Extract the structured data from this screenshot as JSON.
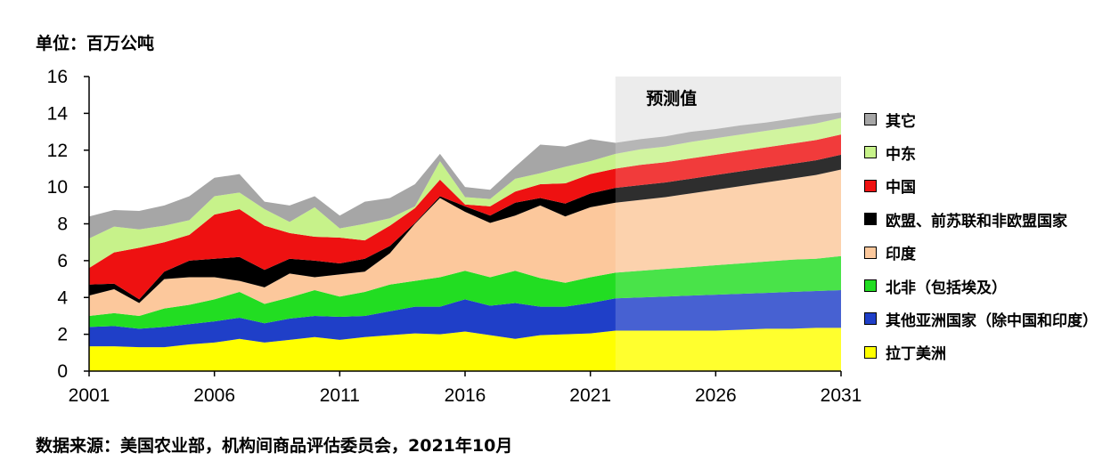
{
  "unit_label": "单位：百万公吨",
  "source_note": "数据来源：美国农业部，机构间商品评估委员会，2021年10月",
  "chart_data": {
    "type": "area",
    "stacked": true,
    "x": [
      2001,
      2002,
      2003,
      2004,
      2005,
      2006,
      2007,
      2008,
      2009,
      2010,
      2011,
      2012,
      2013,
      2014,
      2015,
      2016,
      2017,
      2018,
      2019,
      2020,
      2021,
      2022,
      2023,
      2024,
      2025,
      2026,
      2027,
      2028,
      2029,
      2030,
      2031
    ],
    "xticks": [
      2001,
      2006,
      2011,
      2016,
      2021,
      2026,
      2031
    ],
    "yticks": [
      0,
      2,
      4,
      6,
      8,
      10,
      12,
      14,
      16
    ],
    "xlim": [
      2001,
      2031
    ],
    "ylim": [
      0,
      16
    ],
    "grid": false,
    "legend_position": "right",
    "forecast": {
      "label": "预测值",
      "start": 2022,
      "end": 2031,
      "color": "#e8e8e8"
    },
    "series": [
      {
        "name": "拉丁美洲",
        "color": "#ffff00",
        "values": [
          1.35,
          1.35,
          1.3,
          1.3,
          1.45,
          1.55,
          1.75,
          1.55,
          1.7,
          1.85,
          1.7,
          1.85,
          1.95,
          2.05,
          2.0,
          2.15,
          1.95,
          1.75,
          1.95,
          2.0,
          2.05,
          2.2,
          2.2,
          2.2,
          2.2,
          2.2,
          2.25,
          2.3,
          2.3,
          2.35,
          2.35
        ]
      },
      {
        "name": "其他亚洲国家（除中国和印度）",
        "color": "#1f3fc8",
        "values": [
          1.05,
          1.1,
          1.0,
          1.1,
          1.1,
          1.15,
          1.15,
          1.05,
          1.15,
          1.15,
          1.25,
          1.15,
          1.3,
          1.45,
          1.5,
          1.75,
          1.6,
          1.95,
          1.55,
          1.5,
          1.65,
          1.75,
          1.8,
          1.85,
          1.9,
          1.95,
          1.95,
          1.95,
          2.0,
          2.0,
          2.05
        ]
      },
      {
        "name": "北非（包括埃及）",
        "color": "#22dd22",
        "values": [
          0.6,
          0.7,
          0.7,
          1.0,
          1.05,
          1.2,
          1.4,
          1.05,
          1.15,
          1.4,
          1.1,
          1.3,
          1.45,
          1.4,
          1.6,
          1.55,
          1.55,
          1.75,
          1.55,
          1.3,
          1.4,
          1.4,
          1.45,
          1.5,
          1.55,
          1.6,
          1.65,
          1.7,
          1.75,
          1.75,
          1.85
        ]
      },
      {
        "name": "印度",
        "color": "#fcc89c",
        "values": [
          1.1,
          1.3,
          0.7,
          1.6,
          1.5,
          1.2,
          0.6,
          0.9,
          1.3,
          0.7,
          1.2,
          1.1,
          1.7,
          3.1,
          4.3,
          3.2,
          2.95,
          3.0,
          3.95,
          3.6,
          3.8,
          3.8,
          3.85,
          3.9,
          4.0,
          4.1,
          4.2,
          4.3,
          4.4,
          4.55,
          4.7
        ]
      },
      {
        "name": "欧盟、前苏联和非欧盟国家",
        "color": "#000000",
        "values": [
          0.6,
          0.3,
          0.2,
          0.4,
          0.9,
          1.0,
          1.3,
          0.95,
          0.8,
          0.9,
          0.6,
          0.7,
          0.4,
          0.05,
          0.1,
          0.3,
          0.4,
          0.7,
          0.4,
          0.7,
          0.75,
          0.8,
          0.8,
          0.8,
          0.8,
          0.8,
          0.8,
          0.8,
          0.8,
          0.8,
          0.8
        ]
      },
      {
        "name": "中国",
        "color": "#ee1111",
        "values": [
          0.9,
          1.7,
          2.8,
          1.6,
          1.4,
          2.4,
          2.6,
          2.4,
          1.4,
          1.3,
          1.4,
          1.0,
          1.1,
          0.8,
          0.9,
          0.1,
          0.5,
          0.6,
          0.75,
          1.1,
          1.05,
          1.05,
          1.1,
          1.1,
          1.1,
          1.1,
          1.1,
          1.1,
          1.1,
          1.1,
          1.1
        ]
      },
      {
        "name": "中东",
        "color": "#c7f28a",
        "values": [
          1.6,
          1.4,
          1.0,
          0.9,
          0.8,
          1.0,
          0.9,
          0.9,
          0.6,
          1.6,
          0.5,
          0.9,
          0.4,
          0.1,
          1.0,
          0.4,
          0.4,
          0.7,
          0.6,
          0.9,
          0.7,
          0.8,
          0.85,
          0.85,
          0.9,
          0.9,
          0.9,
          0.9,
          0.9,
          0.9,
          0.9
        ]
      },
      {
        "name": "其它",
        "color": "#a6a6a6",
        "values": [
          1.2,
          0.9,
          1.0,
          1.1,
          1.3,
          1.0,
          1.0,
          0.4,
          0.9,
          0.6,
          0.7,
          1.2,
          1.1,
          1.2,
          0.4,
          0.55,
          0.5,
          0.65,
          1.55,
          1.1,
          1.2,
          0.6,
          0.55,
          0.55,
          0.55,
          0.5,
          0.5,
          0.45,
          0.45,
          0.45,
          0.3
        ]
      }
    ]
  }
}
